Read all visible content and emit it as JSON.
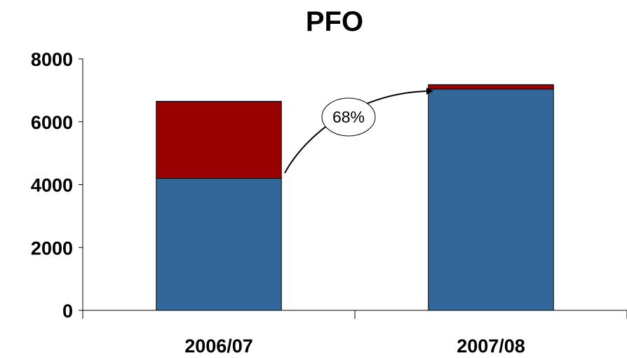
{
  "chart_data": {
    "type": "bar",
    "stacked": true,
    "title": "PFO",
    "xlabel": "",
    "ylabel": "",
    "categories": [
      "2006/07",
      "2007/08"
    ],
    "series": [
      {
        "values": [
          4200,
          7040
        ],
        "color": "#336699"
      },
      {
        "values": [
          2450,
          140
        ],
        "color": "#990000"
      }
    ],
    "ylim": [
      0,
      8000
    ],
    "yticks": [
      "0",
      "2000",
      "4000",
      "6000",
      "8000"
    ],
    "grid": false,
    "legend": "none",
    "annotation": {
      "text": "68%",
      "arrow_from_category": "2006/07",
      "arrow_to_category": "2007/08"
    }
  }
}
